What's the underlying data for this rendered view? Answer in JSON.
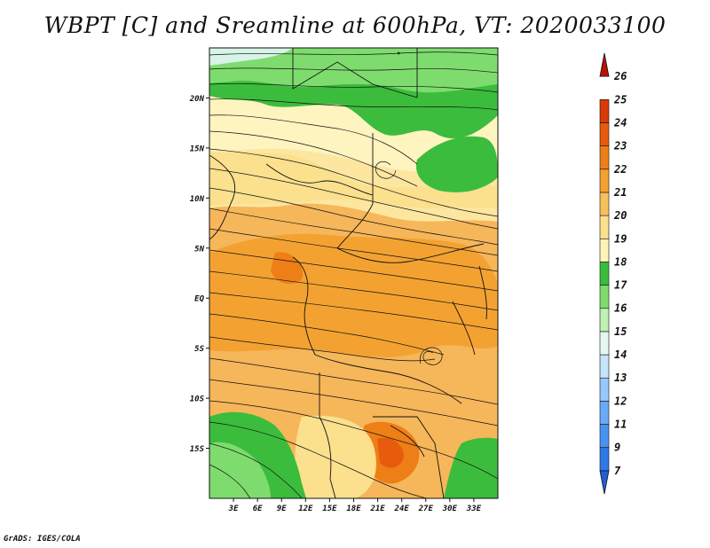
{
  "title": "WBPT [C] and Sreamline at 600hPa, VT: 2020033100",
  "footer": "GrADS: IGES/COLA",
  "map": {
    "lon_range": [
      0,
      36
    ],
    "lat_range": [
      -20,
      25
    ],
    "lat_ticks": [
      {
        "value": 20,
        "label": "20N"
      },
      {
        "value": 15,
        "label": "15N"
      },
      {
        "value": 10,
        "label": "10N"
      },
      {
        "value": 5,
        "label": "5N"
      },
      {
        "value": 0,
        "label": "EQ"
      },
      {
        "value": -5,
        "label": "5S"
      },
      {
        "value": -10,
        "label": "10S"
      },
      {
        "value": -15,
        "label": "15S"
      }
    ],
    "lon_ticks": [
      {
        "value": 3,
        "label": "3E"
      },
      {
        "value": 6,
        "label": "6E"
      },
      {
        "value": 9,
        "label": "9E"
      },
      {
        "value": 12,
        "label": "12E"
      },
      {
        "value": 15,
        "label": "15E"
      },
      {
        "value": 18,
        "label": "18E"
      },
      {
        "value": 21,
        "label": "21E"
      },
      {
        "value": 24,
        "label": "24E"
      },
      {
        "value": 27,
        "label": "27E"
      },
      {
        "value": 30,
        "label": "30E"
      },
      {
        "value": 33,
        "label": "33E"
      }
    ]
  },
  "colorbar": {
    "labels": [
      "7",
      "9",
      "11",
      "12",
      "13",
      "14",
      "15",
      "16",
      "17",
      "18",
      "19",
      "20",
      "21",
      "22",
      "23",
      "24",
      "25",
      "26"
    ],
    "colors": [
      "#1f5fd6",
      "#2f78e8",
      "#4a92f0",
      "#6aabf5",
      "#96c8fa",
      "#c6e4fb",
      "#e6f7f2",
      "#bff0b4",
      "#7edc6e",
      "#3cbc3c",
      "#fdf4b8",
      "#fbe08e",
      "#f8c05c",
      "#f3a232",
      "#ee7f16",
      "#e65c0c",
      "#da3a06",
      "#b81202"
    ]
  }
}
